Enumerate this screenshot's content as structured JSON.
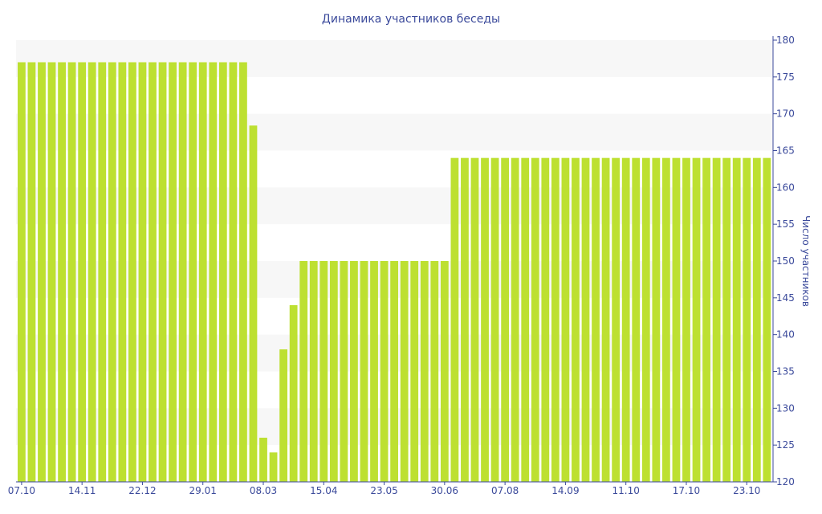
{
  "chart_data": {
    "type": "bar",
    "title": "Динамика участников беседы",
    "xlabel": "",
    "ylabel": "Число участников",
    "ylim": [
      120,
      180
    ],
    "yticks": [
      120,
      125,
      130,
      135,
      140,
      145,
      150,
      155,
      160,
      165,
      170,
      175,
      180
    ],
    "y_axis_position": "right",
    "grid": "alternating horizontal bands",
    "x_tick_labels": [
      "07.10",
      "14.11",
      "22.12",
      "29.01",
      "08.03",
      "15.04",
      "23.05",
      "30.06",
      "07.08",
      "14.09",
      "11.10",
      "17.10",
      "23.10"
    ],
    "x_tick_every": 6,
    "values": [
      177,
      177,
      177,
      177,
      177,
      177,
      177,
      177,
      177,
      177,
      177,
      177,
      177,
      177,
      177,
      177,
      177,
      177,
      177,
      177,
      177,
      177,
      177,
      168.4,
      126,
      124,
      138,
      144,
      150,
      150,
      150,
      150,
      150,
      150,
      150,
      150,
      150,
      150,
      150,
      150,
      150,
      150,
      150,
      164,
      164,
      164,
      164,
      164,
      164,
      164,
      164,
      164,
      164,
      164,
      164,
      164,
      164,
      164,
      164,
      164,
      164,
      164,
      164,
      164,
      164,
      164,
      164,
      164,
      164,
      164,
      164,
      164,
      164,
      164,
      164
    ],
    "colors": {
      "bar": "#bde031",
      "axis": "#3b4a9b",
      "band": "#f7f7f7"
    }
  }
}
